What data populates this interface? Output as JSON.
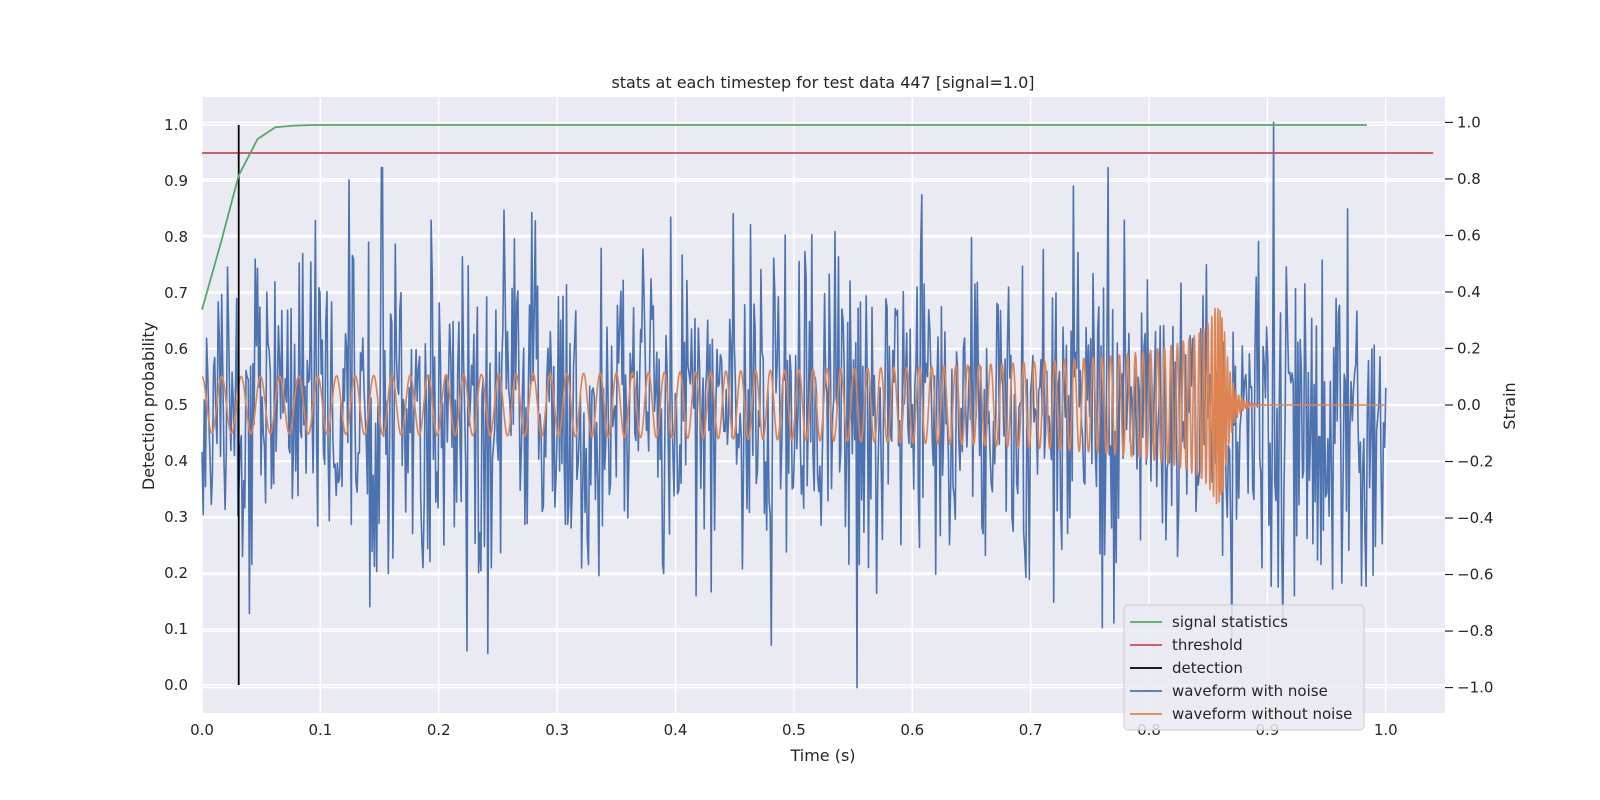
{
  "chart_data": {
    "type": "line",
    "title": "stats at each timestep for test data 447 [signal=1.0]",
    "xlabel": "Time (s)",
    "ylabel": "Detection probability",
    "y2label": "Strain",
    "xlim": [
      0.0,
      1.05
    ],
    "ylim": [
      -0.05,
      1.05
    ],
    "y2lim": [
      -1.09,
      1.09
    ],
    "x_ticks": [
      "0.0",
      "0.1",
      "0.2",
      "0.3",
      "0.4",
      "0.5",
      "0.6",
      "0.7",
      "0.8",
      "0.9",
      "1.0"
    ],
    "y_ticks": [
      "0.0",
      "0.1",
      "0.2",
      "0.3",
      "0.4",
      "0.5",
      "0.6",
      "0.7",
      "0.8",
      "0.9",
      "1.0"
    ],
    "y2_ticks": [
      "−1.0",
      "−0.8",
      "−0.6",
      "−0.4",
      "−0.2",
      "0.0",
      "0.2",
      "0.4",
      "0.6",
      "0.8",
      "1.0"
    ],
    "grid": true,
    "legend_position": "lower right",
    "series": [
      {
        "name": "signal statistics",
        "color": "#55a868",
        "axis": "left",
        "x": [
          0.0,
          0.016,
          0.031,
          0.047,
          0.062,
          0.078,
          0.094,
          0.2,
          0.4,
          0.6,
          0.8,
          0.984
        ],
        "values": [
          0.67,
          0.79,
          0.91,
          0.975,
          0.996,
          0.999,
          1.0,
          1.0,
          1.0,
          1.0,
          1.0,
          1.0
        ]
      },
      {
        "name": "threshold",
        "color": "#c44e52",
        "axis": "left",
        "x": [
          0.0,
          1.04
        ],
        "values": [
          0.95,
          0.95
        ]
      },
      {
        "name": "detection",
        "color": "#000000",
        "axis": "left",
        "x": [
          0.031,
          0.031
        ],
        "values": [
          0.0,
          1.0
        ]
      },
      {
        "name": "waveform with noise",
        "color": "#4c72b0",
        "axis": "right",
        "x_range": [
          0.0,
          1.0
        ],
        "n_points": 1024,
        "amplitude_range": [
          -1.0,
          1.0
        ],
        "notable_points": [
          {
            "x": 0.152,
            "y": 0.84
          },
          {
            "x": 0.224,
            "y": -0.87
          },
          {
            "x": 0.553,
            "y": -1.0
          },
          {
            "x": 0.905,
            "y": 1.0
          }
        ]
      },
      {
        "name": "waveform without noise",
        "color": "#dd8452",
        "axis": "right",
        "x_range": [
          0.0,
          1.0
        ],
        "merger_time": 0.862,
        "amplitude_start": 0.1,
        "amplitude_peak": 0.35
      }
    ]
  }
}
